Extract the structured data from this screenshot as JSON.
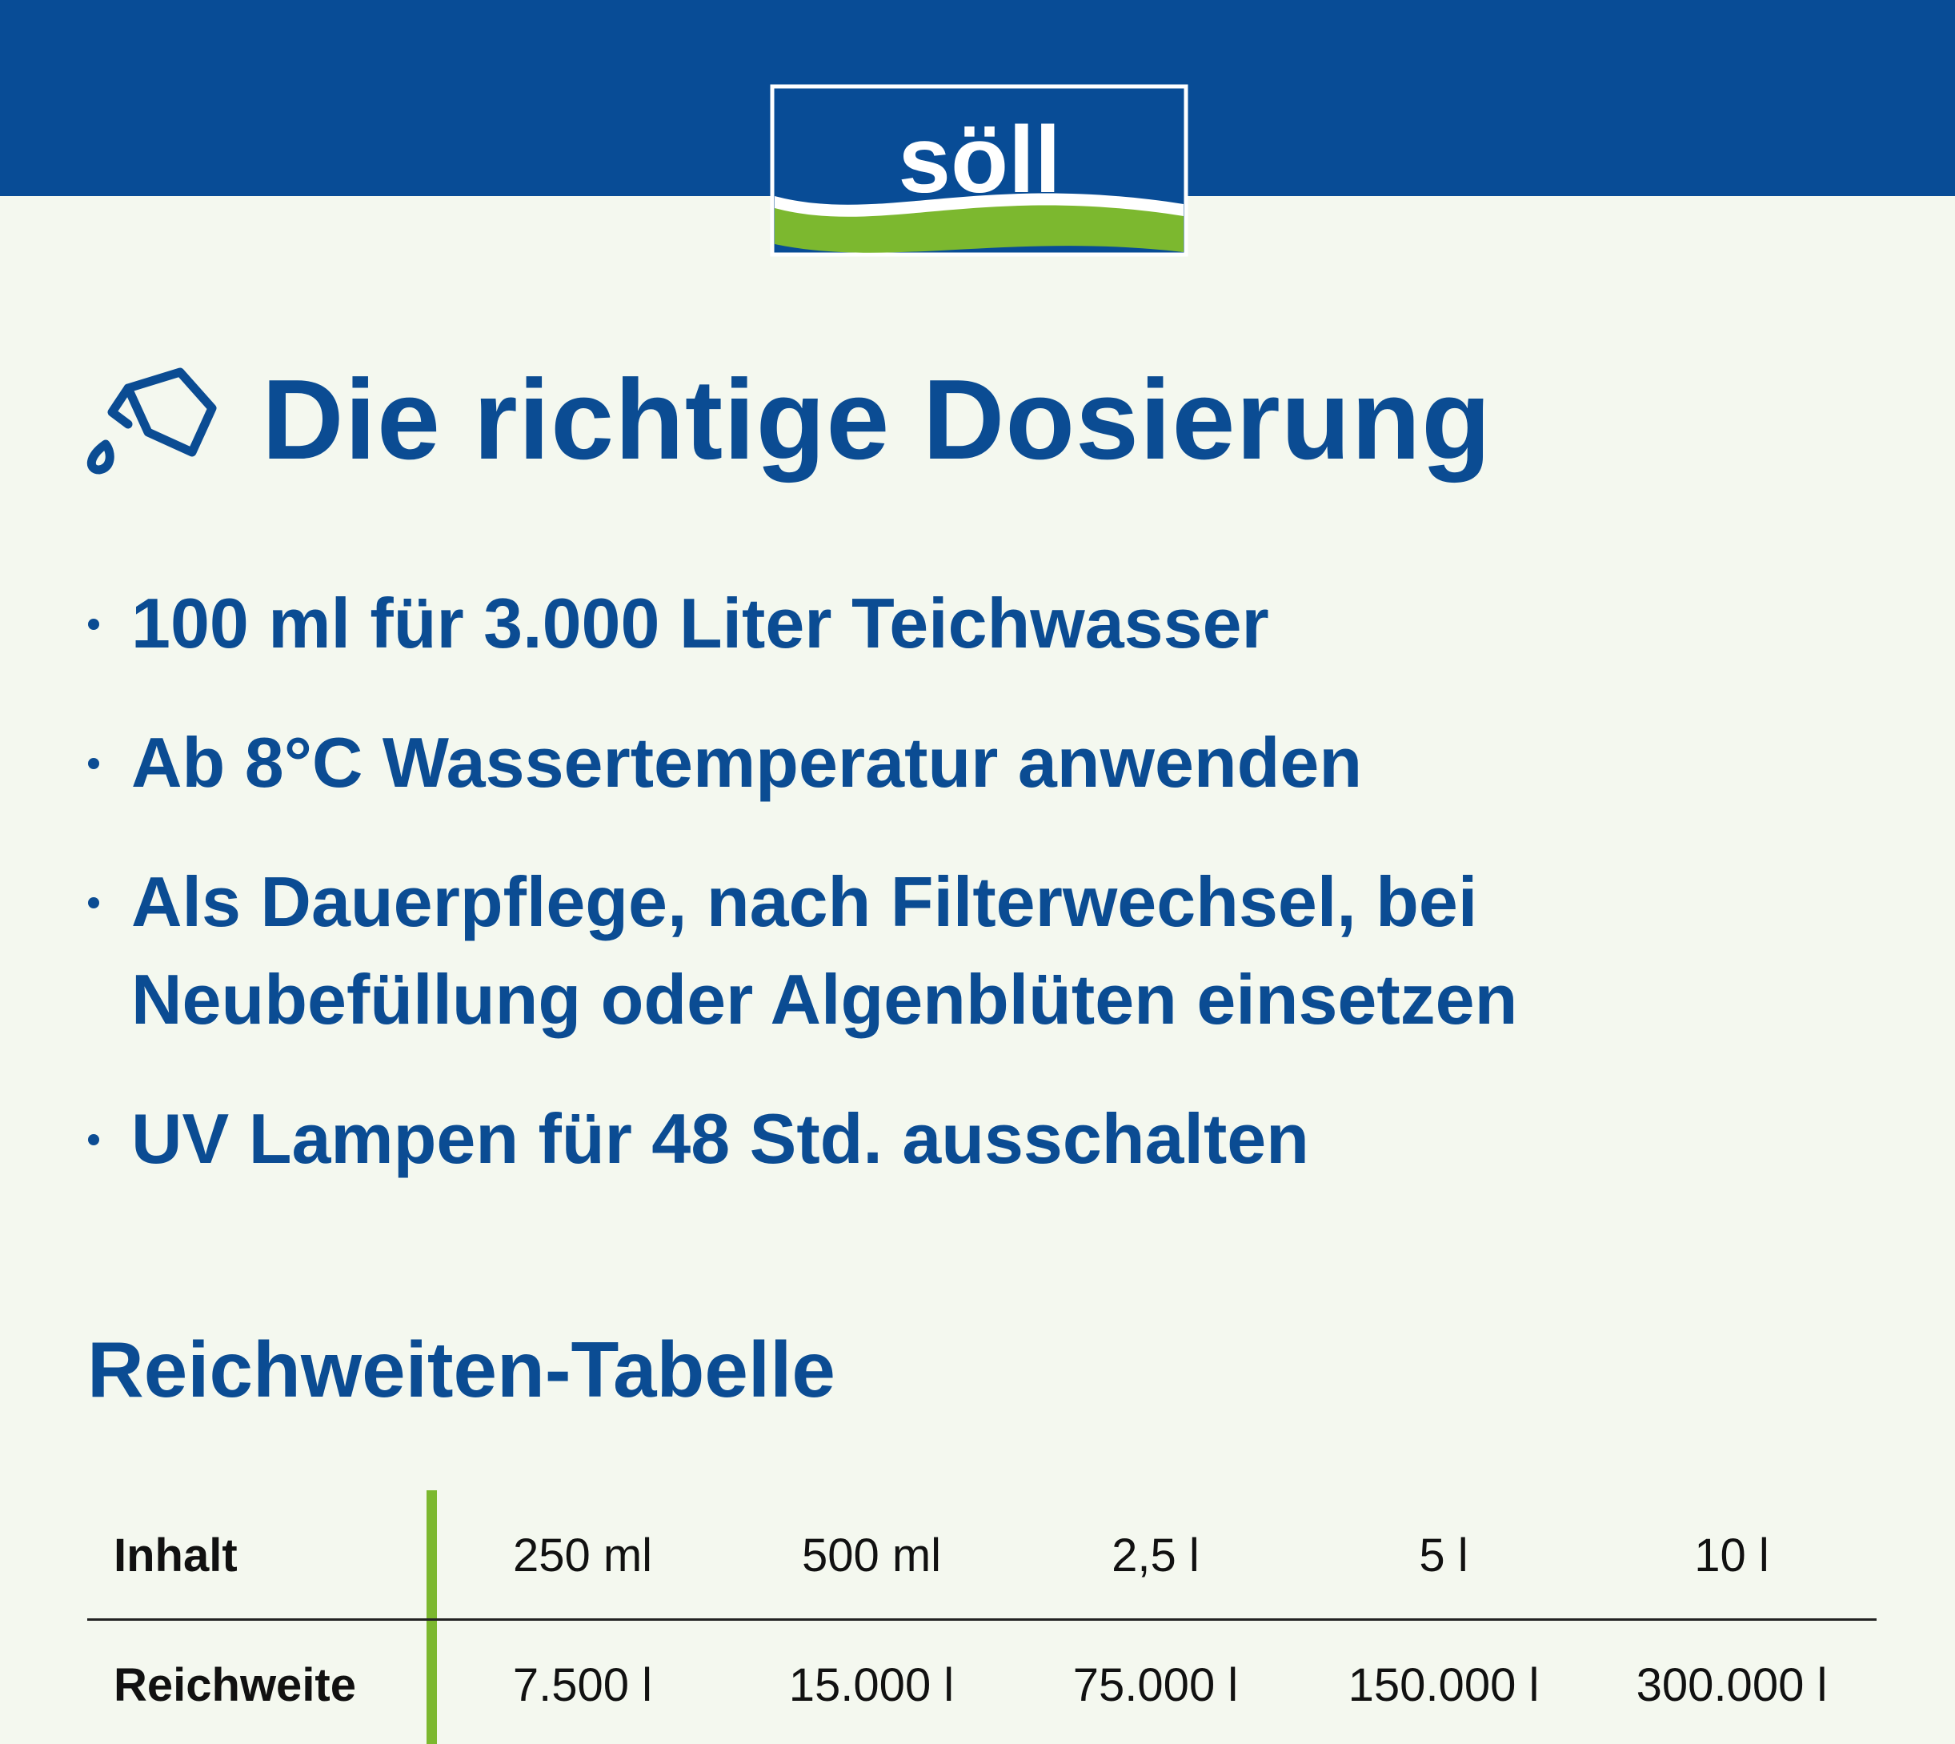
{
  "header": {
    "logo": "söll"
  },
  "title": "Die richtige Dosierung",
  "bullets": [
    "100 ml für 3.000 Liter Teichwasser",
    "Ab 8°C Wassertemperatur anwenden",
    "Als Dauerpflege, nach Filterwechsel, bei Neubefüllung oder Algenblüten einsetzen",
    "UV Lampen für 48 Std. ausschalten"
  ],
  "table": {
    "title": "Reichweiten-Tabelle",
    "rows": [
      [
        "Inhalt",
        "250 ml",
        "500 ml",
        "2,5 l",
        "5 l",
        "10 l"
      ],
      [
        "Reichweite",
        "7.500 l",
        "15.000 l",
        "75.000 l",
        "150.000 l",
        "300.000 l"
      ]
    ]
  }
}
